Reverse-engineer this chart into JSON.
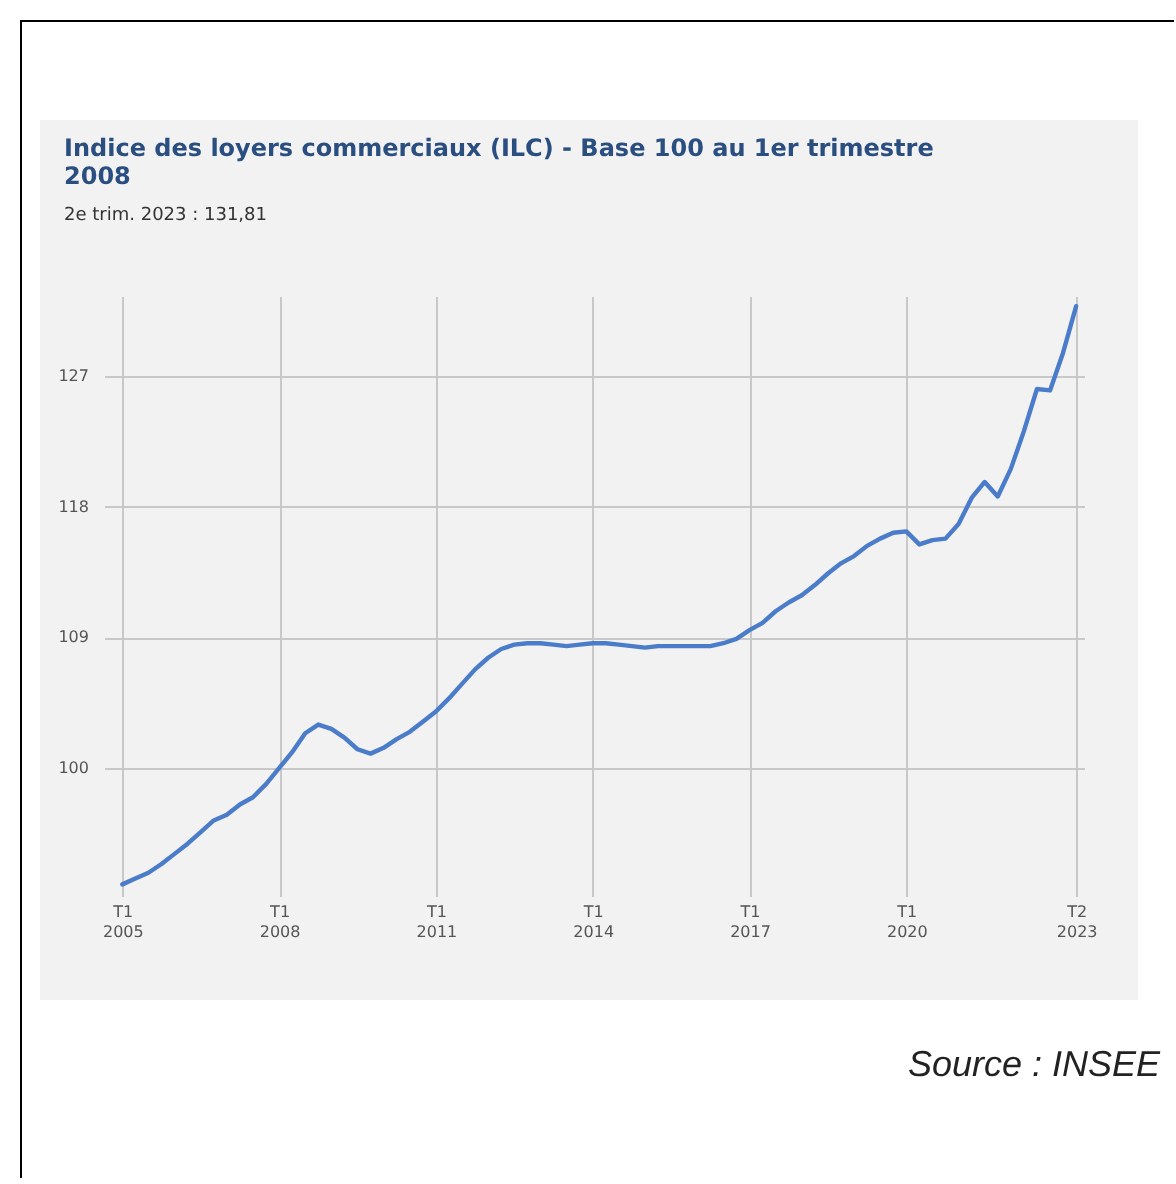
{
  "chart_data": {
    "type": "line",
    "title": "Indice des loyers commerciaux (ILC) - Base 100 au 1er trimestre 2008",
    "subtitle": "2e trim. 2023 : 131,81",
    "annotations": [
      "Source : INSEE"
    ],
    "categories": [
      "T1 2005",
      null,
      null,
      null,
      null,
      null,
      null,
      null,
      null,
      null,
      null,
      null,
      "T1 2008",
      null,
      null,
      null,
      null,
      null,
      null,
      null,
      null,
      null,
      null,
      null,
      "T1 2011",
      null,
      null,
      null,
      null,
      null,
      null,
      null,
      null,
      null,
      null,
      null,
      "T1 2014",
      null,
      null,
      null,
      null,
      null,
      null,
      null,
      null,
      null,
      null,
      null,
      "T1 2017",
      null,
      null,
      null,
      null,
      null,
      null,
      null,
      null,
      null,
      null,
      null,
      "T1 2020",
      null,
      null,
      null,
      null,
      null,
      null,
      null,
      null,
      null,
      null,
      null,
      null,
      "T2 2023"
    ],
    "series": [
      {
        "color": "#4a7cc9",
        "values": [
          92.0,
          92.4,
          92.8,
          93.4,
          94.1,
          94.8,
          95.6,
          96.4,
          96.8,
          97.5,
          98.0,
          98.9,
          100.0,
          101.1,
          102.4,
          103.0,
          102.7,
          102.1,
          101.3,
          101.0,
          101.4,
          102.0,
          102.5,
          103.2,
          103.9,
          104.8,
          105.8,
          106.8,
          107.6,
          108.2,
          108.5,
          108.6,
          108.6,
          108.5,
          108.4,
          108.5,
          108.6,
          108.6,
          108.5,
          108.4,
          108.3,
          108.4,
          108.4,
          108.4,
          108.4,
          108.4,
          108.6,
          108.9,
          109.5,
          110.0,
          110.8,
          111.4,
          111.9,
          112.6,
          113.4,
          114.1,
          114.6,
          115.3,
          115.8,
          116.2,
          116.3,
          115.4,
          115.7,
          115.8,
          116.8,
          118.6,
          119.7,
          118.7,
          120.6,
          123.2,
          126.1,
          126.0,
          128.6,
          131.8
        ]
      }
    ],
    "ylim": [
      91.2,
      132.5
    ],
    "yticks": [
      100,
      109,
      118,
      127
    ],
    "grid": true,
    "marker": "none",
    "line_style": "solid"
  }
}
